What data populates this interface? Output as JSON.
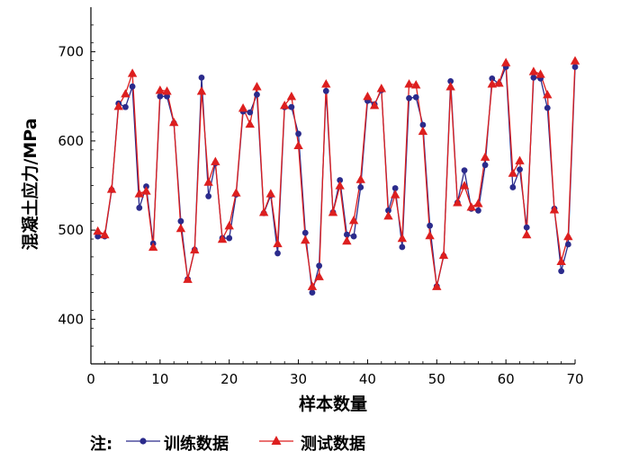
{
  "chart_data": {
    "type": "line",
    "xlabel": "样本数量",
    "ylabel": "混凝土应力/MPa",
    "xlim": [
      0,
      70
    ],
    "ylim": [
      350,
      750
    ],
    "xticks": [
      0,
      10,
      20,
      30,
      40,
      50,
      60,
      70
    ],
    "yticks": [
      400,
      500,
      600,
      700
    ],
    "grid": false,
    "legend_prefix": "注:",
    "legend_position": "bottom-left",
    "series": [
      {
        "name": "训练数据",
        "color": "#2b2b8c",
        "marker": "circle",
        "x": [
          1,
          2,
          3,
          4,
          5,
          6,
          7,
          8,
          9,
          10,
          11,
          12,
          13,
          14,
          15,
          16,
          17,
          18,
          19,
          20,
          21,
          22,
          23,
          24,
          25,
          26,
          27,
          28,
          29,
          30,
          31,
          32,
          33,
          34,
          35,
          36,
          37,
          38,
          39,
          40,
          41,
          42,
          43,
          44,
          45,
          46,
          47,
          48,
          49,
          50,
          51,
          52,
          53,
          54,
          55,
          56,
          57,
          58,
          59,
          60,
          61,
          62,
          63,
          64,
          65,
          66,
          67,
          68,
          69,
          70
        ],
        "values": [
          493,
          493,
          545,
          642,
          638,
          661,
          525,
          549,
          485,
          650,
          650,
          620,
          510,
          445,
          478,
          671,
          538,
          575,
          491,
          491,
          540,
          633,
          632,
          652,
          519,
          539,
          474,
          638,
          638,
          608,
          497,
          430,
          460,
          656,
          520,
          556,
          495,
          493,
          548,
          645,
          641,
          657,
          522,
          547,
          481,
          648,
          649,
          618,
          505,
          437,
          471,
          667,
          531,
          567,
          524,
          522,
          573,
          670,
          664,
          683,
          548,
          568,
          503,
          671,
          670,
          637,
          524,
          454,
          484,
          683
        ]
      },
      {
        "name": "测试数据",
        "color": "#dd1f1f",
        "marker": "triangle",
        "x": [
          1,
          2,
          3,
          4,
          5,
          6,
          7,
          8,
          9,
          10,
          11,
          12,
          13,
          14,
          15,
          16,
          17,
          18,
          19,
          20,
          21,
          22,
          23,
          24,
          25,
          26,
          27,
          28,
          29,
          30,
          31,
          32,
          33,
          34,
          35,
          36,
          37,
          38,
          39,
          40,
          41,
          42,
          43,
          44,
          45,
          46,
          47,
          48,
          49,
          50,
          51,
          52,
          53,
          54,
          55,
          56,
          57,
          58,
          59,
          60,
          61,
          62,
          63,
          64,
          65,
          66,
          67,
          68,
          69,
          70
        ],
        "values": [
          499,
          495,
          546,
          639,
          653,
          676,
          541,
          544,
          481,
          657,
          656,
          621,
          502,
          445,
          478,
          656,
          554,
          577,
          490,
          505,
          542,
          637,
          619,
          661,
          520,
          541,
          485,
          640,
          650,
          595,
          489,
          437,
          448,
          664,
          520,
          550,
          488,
          511,
          557,
          650,
          640,
          659,
          516,
          540,
          491,
          664,
          663,
          611,
          494,
          437,
          472,
          661,
          531,
          550,
          526,
          530,
          582,
          664,
          665,
          688,
          564,
          578,
          495,
          678,
          675,
          652,
          523,
          465,
          493,
          690
        ]
      }
    ]
  }
}
